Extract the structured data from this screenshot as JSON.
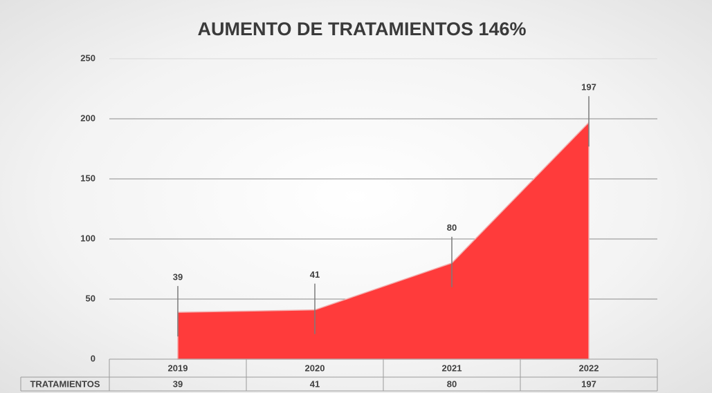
{
  "chart_data": {
    "type": "area",
    "title": "AUMENTO DE TRATAMIENTOS 146%",
    "categories": [
      "2019",
      "2020",
      "2021",
      "2022"
    ],
    "series": [
      {
        "name": "TRATAMIENTOS",
        "color": "#ff3b3b",
        "values": [
          39,
          41,
          80,
          197
        ]
      }
    ],
    "ylim": [
      0,
      250
    ],
    "yticks": [
      0,
      50,
      100,
      150,
      200,
      250
    ],
    "grid": true,
    "data_table": true
  }
}
